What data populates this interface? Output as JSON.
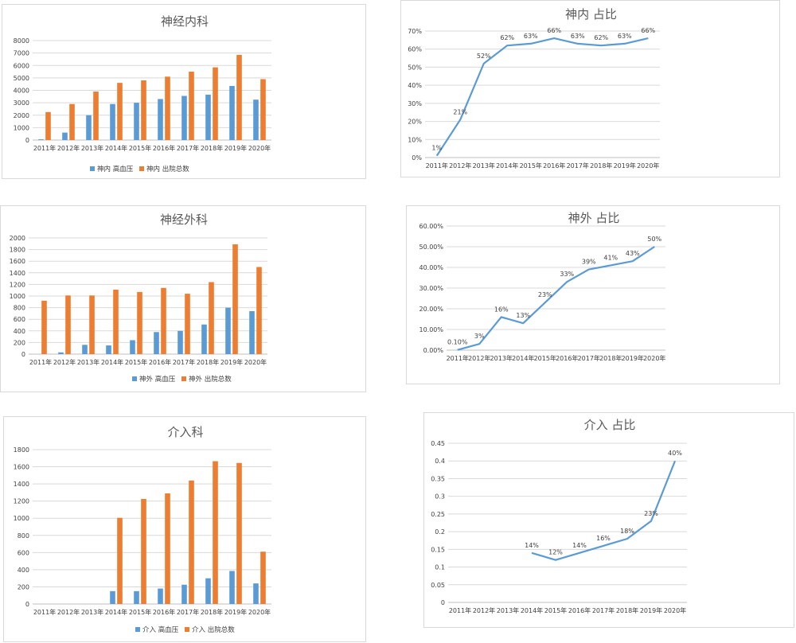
{
  "colors": {
    "blue": "#5b9bd5",
    "orange": "#ed7d31",
    "line": "#5b9bd5"
  },
  "chart_data": [
    {
      "id": "c1",
      "type": "bar",
      "title": "神经内科",
      "categories": [
        "2011年",
        "2012年",
        "2013年",
        "2014年",
        "2015年",
        "2016年",
        "2017年",
        "2018年",
        "2019年",
        "2020年"
      ],
      "series": [
        {
          "name": "神内 高血压",
          "color": "#5b9bd5",
          "values": [
            60,
            600,
            2000,
            2900,
            3000,
            3300,
            3550,
            3650,
            4350,
            3250
          ]
        },
        {
          "name": "神内 出院总数",
          "color": "#ed7d31",
          "values": [
            2250,
            2900,
            3900,
            4600,
            4800,
            5100,
            5500,
            5850,
            6850,
            4900
          ]
        }
      ],
      "ylim": [
        0,
        8000
      ],
      "yticks": [
        "0",
        "1000",
        "2000",
        "3000",
        "4000",
        "5000",
        "6000",
        "7000",
        "8000"
      ],
      "legend": "bottom"
    },
    {
      "id": "c2",
      "type": "line",
      "title": "神内 占比",
      "categories": [
        "2011年",
        "2012年",
        "2013年",
        "2014年",
        "2015年",
        "2016年",
        "2017年",
        "2018年",
        "2019年",
        "2020年"
      ],
      "values": [
        1,
        21,
        52,
        62,
        63,
        66,
        63,
        62,
        63,
        66
      ],
      "data_labels": [
        "1%",
        "21%",
        "52%",
        "62%",
        "63%",
        "66%",
        "63%",
        "62%",
        "63%",
        "66%"
      ],
      "ylim": [
        0,
        70
      ],
      "yticks": [
        "0%",
        "10%",
        "20%",
        "30%",
        "40%",
        "50%",
        "60%",
        "70%"
      ]
    },
    {
      "id": "c3",
      "type": "bar",
      "title": "神经外科",
      "categories": [
        "2011年",
        "2012年",
        "2013年",
        "2014年",
        "2015年",
        "2016年",
        "2017年",
        "2018年",
        "2019年",
        "2020年"
      ],
      "series": [
        {
          "name": "神外 高血压",
          "color": "#5b9bd5",
          "values": [
            0,
            30,
            160,
            150,
            240,
            380,
            400,
            510,
            800,
            740
          ]
        },
        {
          "name": "神外 出院总数",
          "color": "#ed7d31",
          "values": [
            920,
            1010,
            1010,
            1110,
            1070,
            1140,
            1040,
            1240,
            1890,
            1500
          ]
        }
      ],
      "ylim": [
        0,
        2000
      ],
      "yticks": [
        "0",
        "200",
        "400",
        "600",
        "800",
        "1000",
        "1200",
        "1400",
        "1600",
        "1800",
        "2000"
      ],
      "legend": "bottom"
    },
    {
      "id": "c4",
      "type": "line",
      "title": "神外 占比",
      "categories": [
        "2011年",
        "2012年",
        "2013年",
        "2014年",
        "2015年",
        "2016年",
        "2017年",
        "2018年",
        "2019年",
        "2020年"
      ],
      "values": [
        0.1,
        3,
        16,
        13,
        23,
        33,
        39,
        41,
        43,
        50
      ],
      "data_labels": [
        "0.10%",
        "3%",
        "16%",
        "13%",
        "23%",
        "33%",
        "39%",
        "41%",
        "43%",
        "50%"
      ],
      "ylim": [
        0,
        60
      ],
      "yticks": [
        "0.00%",
        "10.00%",
        "20.00%",
        "30.00%",
        "40.00%",
        "50.00%",
        "60.00%"
      ]
    },
    {
      "id": "c5",
      "type": "bar",
      "title": "介入科",
      "categories": [
        "2011年",
        "2012年",
        "2013年",
        "2014年",
        "2015年",
        "2016年",
        "2017年",
        "2018年",
        "2019年",
        "2020年"
      ],
      "series": [
        {
          "name": "介入 高血压",
          "color": "#5b9bd5",
          "values": [
            0,
            0,
            0,
            150,
            150,
            180,
            225,
            300,
            385,
            240
          ]
        },
        {
          "name": "介入 出院总数",
          "color": "#ed7d31",
          "values": [
            0,
            0,
            0,
            1005,
            1225,
            1290,
            1440,
            1665,
            1645,
            610
          ]
        }
      ],
      "ylim": [
        0,
        1800
      ],
      "yticks": [
        "0",
        "200",
        "400",
        "600",
        "800",
        "1000",
        "1200",
        "1400",
        "1600",
        "1800"
      ],
      "legend": "bottom"
    },
    {
      "id": "c6",
      "type": "line",
      "title": "介入 占比",
      "categories": [
        "2011年",
        "2012年",
        "2013年",
        "2014年",
        "2015年",
        "2016年",
        "2017年",
        "2018年",
        "2019年",
        "2020年"
      ],
      "values": [
        null,
        null,
        null,
        0.14,
        0.12,
        0.14,
        0.16,
        0.18,
        0.23,
        0.4
      ],
      "data_labels": [
        "",
        "",
        "",
        "14%",
        "12%",
        "14%",
        "16%",
        "18%",
        "23%",
        "40%"
      ],
      "ylim": [
        0,
        0.45
      ],
      "yticks": [
        "0",
        "0.05",
        "0.1",
        "0.15",
        "0.2",
        "0.25",
        "0.3",
        "0.35",
        "0.4",
        "0.45"
      ]
    }
  ]
}
